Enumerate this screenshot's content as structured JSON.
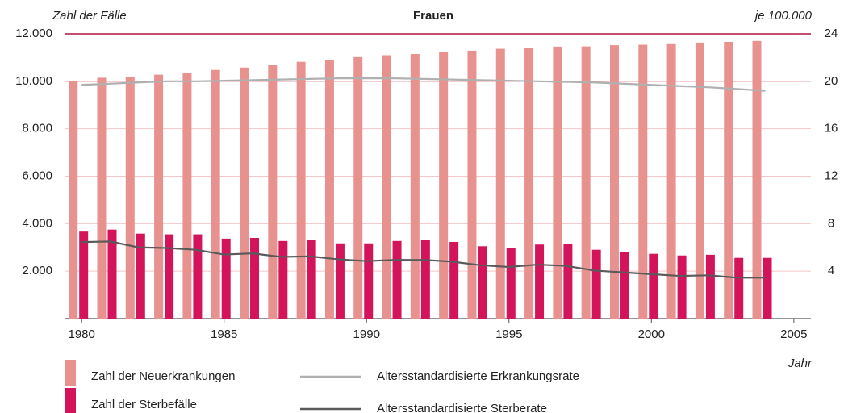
{
  "chart_data": {
    "type": "bar",
    "title": "Frauen",
    "y_label": "Zahl der Fälle",
    "y2_label": "je 100.000",
    "x_label": "Jahr",
    "x": [
      1980,
      1981,
      1982,
      1983,
      1984,
      1985,
      1986,
      1987,
      1988,
      1989,
      1990,
      1991,
      1992,
      1993,
      1994,
      1995,
      1996,
      1997,
      1998,
      1999,
      2000,
      2001,
      2002,
      2003,
      2004
    ],
    "xlim": [
      1979.4,
      2005.6
    ],
    "xticks": [
      1980,
      1985,
      1990,
      1995,
      2000,
      2005
    ],
    "ylim": [
      0,
      12000
    ],
    "yticks": [
      {
        "value": 2000,
        "label": "2.000"
      },
      {
        "value": 4000,
        "label": "4.000"
      },
      {
        "value": 6000,
        "label": "6.000"
      },
      {
        "value": 8000,
        "label": "8.000"
      },
      {
        "value": 10000,
        "label": "10.000"
      },
      {
        "value": 12000,
        "label": "12.000"
      }
    ],
    "y2lim": [
      0,
      24
    ],
    "y2ticks": [
      4,
      8,
      12,
      16,
      20,
      24
    ],
    "grid": true,
    "series": [
      {
        "name": "Zahl der Neuerkrankungen",
        "type": "bar",
        "color": "#e8928f",
        "values": [
          10000,
          10150,
          10200,
          10280,
          10350,
          10480,
          10580,
          10680,
          10820,
          10880,
          11020,
          11100,
          11150,
          11230,
          11290,
          11370,
          11420,
          11460,
          11470,
          11520,
          11540,
          11600,
          11630,
          11660,
          11700
        ]
      },
      {
        "name": "Zahl der Sterbefälle",
        "type": "bar",
        "color": "#d4145a",
        "values": [
          3700,
          3750,
          3580,
          3550,
          3550,
          3370,
          3400,
          3270,
          3330,
          3170,
          3170,
          3270,
          3330,
          3230,
          3050,
          2960,
          3120,
          3130,
          2900,
          2820,
          2730,
          2660,
          2690,
          2560,
          2560
        ]
      },
      {
        "name": "Altersstandardisierte Erkrankungsrate",
        "type": "line",
        "axis": "y2",
        "color": "#b0b0b0",
        "values": [
          19.7,
          19.8,
          19.9,
          20.0,
          20.0,
          20.05,
          20.1,
          20.15,
          20.2,
          20.25,
          20.25,
          20.25,
          20.2,
          20.15,
          20.1,
          20.05,
          20.0,
          19.95,
          19.9,
          19.8,
          19.7,
          19.6,
          19.5,
          19.35,
          19.2
        ]
      },
      {
        "name": "Altersstandardisierte Sterberate",
        "type": "line",
        "axis": "y2",
        "color": "#5a5a5a",
        "values": [
          6.45,
          6.5,
          6.0,
          5.95,
          5.8,
          5.4,
          5.5,
          5.2,
          5.25,
          5.0,
          4.85,
          4.95,
          4.95,
          4.8,
          4.5,
          4.35,
          4.55,
          4.45,
          4.05,
          3.9,
          3.75,
          3.6,
          3.65,
          3.45,
          3.45
        ]
      }
    ]
  }
}
